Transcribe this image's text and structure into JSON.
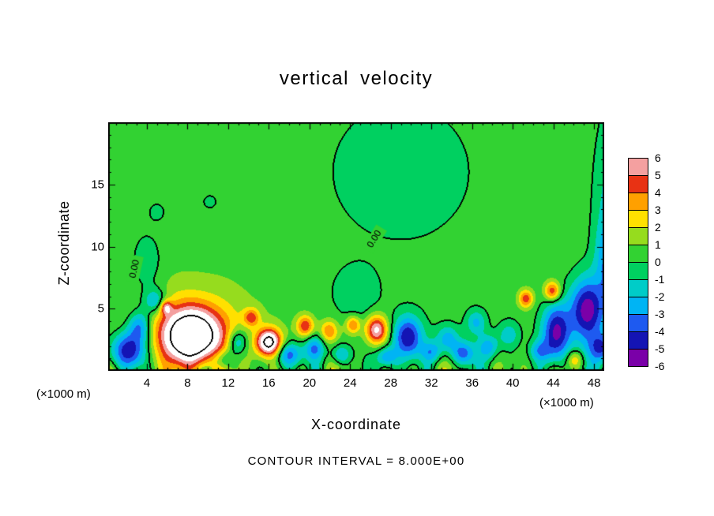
{
  "title": "vertical velocity",
  "footer": "CONTOUR INTERVAL = 8.000E+00",
  "axes": {
    "x_label": "X-coordinate",
    "y_label": "Z-coordinate",
    "unit_left": "(×1000 m)",
    "unit_right": "(×1000 m)"
  },
  "colorbar": {
    "tick_labels": [
      "6",
      "5",
      "4",
      "3",
      "2",
      "1",
      "0",
      "-1",
      "-2",
      "-3",
      "-4",
      "-5",
      "-6"
    ]
  },
  "chart_data": {
    "type": "heatmap",
    "title": "vertical velocity",
    "xlabel": "X-coordinate",
    "ylabel": "Z-coordinate",
    "x_unit": "×1000 m",
    "y_unit": "×1000 m",
    "xlim": [
      0.2,
      49.0
    ],
    "zlim": [
      0,
      20
    ],
    "x_major_ticks": [
      4,
      8,
      12,
      16,
      20,
      24,
      28,
      32,
      36,
      40,
      44,
      48
    ],
    "x_minor_step": 1,
    "y_major_ticks": [
      5,
      10,
      15
    ],
    "y_minor_step": 1,
    "levels": [
      -6,
      -5,
      -4,
      -3,
      -2,
      -1,
      0,
      1,
      2,
      3,
      4,
      5,
      6
    ],
    "band_colors": [
      "#7a00a8",
      "#1414b4",
      "#1e5af0",
      "#00b4f4",
      "#00ccc8",
      "#00d060",
      "#32d232",
      "#96dc1e",
      "#ffe000",
      "#ffa000",
      "#e83214",
      "#f4a0a0"
    ],
    "overflow_color": "#ffffff",
    "underflow_color": "#7a00a8",
    "contour_levels": [
      0,
      8
    ],
    "contour_interval": 8.0,
    "contour_labels": [
      {
        "text": "0.00",
        "x": 2.8,
        "z": 8.2,
        "angle": -78
      },
      {
        "text": "0.00",
        "x": 26.4,
        "z": 10.6,
        "angle": -58
      }
    ],
    "background": 0.6,
    "ripple": {
      "amp": 1.8,
      "kx": 1.15,
      "phase": 0.4,
      "mod_k": 0.53,
      "mod_phase": 2.0,
      "decay": 1.6,
      "amp2": 0.9,
      "kx2": 2.3,
      "phase2": 1.1,
      "decay2": 1.0
    },
    "features": [
      {
        "x": 8.4,
        "z": 2.8,
        "sx": 1.9,
        "sz": 1.5,
        "amp": 10.0
      },
      {
        "x": 8.4,
        "z": 3.2,
        "sx": 4.2,
        "sz": 2.6,
        "amp": 2.2
      },
      {
        "x": 16.0,
        "z": 2.3,
        "sx": 0.85,
        "sz": 0.75,
        "amp": 8.2
      },
      {
        "x": 2.2,
        "z": 1.6,
        "sx": 1.3,
        "sz": 1.1,
        "amp": -6.0
      },
      {
        "x": 3.3,
        "z": 3.6,
        "sx": 0.8,
        "sz": 0.9,
        "amp": -4.0
      },
      {
        "x": 4.8,
        "z": 5.6,
        "sx": 0.8,
        "sz": 0.7,
        "amp": -3.2
      },
      {
        "x": 5.9,
        "z": 5.1,
        "sx": 0.4,
        "sz": 0.4,
        "amp": 4.0
      },
      {
        "x": 11.6,
        "z": 0.9,
        "sx": 0.8,
        "sz": 0.6,
        "amp": -3.2
      },
      {
        "x": 12.9,
        "z": 2.3,
        "sx": 0.7,
        "sz": 0.7,
        "amp": -3.5
      },
      {
        "x": 14.3,
        "z": 4.3,
        "sx": 0.55,
        "sz": 0.5,
        "amp": 3.6
      },
      {
        "x": 18.0,
        "z": 1.3,
        "sx": 0.9,
        "sz": 0.7,
        "amp": -4.0
      },
      {
        "x": 19.6,
        "z": 3.6,
        "sx": 0.6,
        "sz": 0.6,
        "amp": 4.4
      },
      {
        "x": 20.5,
        "z": 1.8,
        "sx": 0.7,
        "sz": 0.7,
        "amp": -3.4
      },
      {
        "x": 21.9,
        "z": 3.2,
        "sx": 0.6,
        "sz": 0.6,
        "amp": 3.4
      },
      {
        "x": 23.1,
        "z": 1.3,
        "sx": 0.7,
        "sz": 0.6,
        "amp": -3.0
      },
      {
        "x": 24.3,
        "z": 3.7,
        "sx": 0.5,
        "sz": 0.5,
        "amp": 3.8
      },
      {
        "x": 26.6,
        "z": 3.3,
        "sx": 0.75,
        "sz": 0.8,
        "amp": 6.0
      },
      {
        "x": 27.6,
        "z": 1.1,
        "sx": 0.7,
        "sz": 0.6,
        "amp": -3.4
      },
      {
        "x": 29.7,
        "z": 2.7,
        "sx": 1.0,
        "sz": 1.2,
        "amp": -5.5
      },
      {
        "x": 32.0,
        "z": 1.5,
        "sx": 0.7,
        "sz": 0.6,
        "amp": -2.8
      },
      {
        "x": 33.6,
        "z": 2.6,
        "sx": 0.8,
        "sz": 0.8,
        "amp": -3.2
      },
      {
        "x": 35.1,
        "z": 1.4,
        "sx": 0.8,
        "sz": 0.7,
        "amp": -4.0
      },
      {
        "x": 36.4,
        "z": 3.9,
        "sx": 0.7,
        "sz": 0.7,
        "amp": -2.6
      },
      {
        "x": 37.6,
        "z": 1.9,
        "sx": 0.7,
        "sz": 0.7,
        "amp": -3.0
      },
      {
        "x": 39.6,
        "z": 2.9,
        "sx": 0.8,
        "sz": 0.8,
        "amp": -2.2
      },
      {
        "x": 41.3,
        "z": 5.8,
        "sx": 0.5,
        "sz": 0.5,
        "amp": 4.2
      },
      {
        "x": 42.6,
        "z": 1.6,
        "sx": 0.7,
        "sz": 0.6,
        "amp": -2.6
      },
      {
        "x": 43.9,
        "z": 6.4,
        "sx": 0.55,
        "sz": 0.55,
        "amp": 4.6
      },
      {
        "x": 44.3,
        "z": 3.0,
        "sx": 1.0,
        "sz": 1.7,
        "amp": -6.0
      },
      {
        "x": 46.1,
        "z": 0.9,
        "sx": 0.55,
        "sz": 0.5,
        "amp": 2.6
      },
      {
        "x": 47.3,
        "z": 4.9,
        "sx": 1.2,
        "sz": 1.8,
        "amp": -6.0
      },
      {
        "x": 48.8,
        "z": 1.8,
        "sx": 0.9,
        "sz": 0.8,
        "amp": -4.0
      },
      {
        "x": 50.0,
        "z": 12.0,
        "sx": 1.3,
        "sz": 6.0,
        "amp": -2.6
      },
      {
        "x": 49.8,
        "z": 9.0,
        "sx": 1.0,
        "sz": 2.0,
        "amp": -3.0
      },
      {
        "x": 29.0,
        "z": 16.0,
        "sx": 8.0,
        "sz": 6.5,
        "amp": -0.85
      },
      {
        "x": 24.5,
        "z": 6.0,
        "sx": 1.6,
        "sz": 1.5,
        "amp": -1.2
      },
      {
        "x": 4.0,
        "z": 8.5,
        "sx": 1.1,
        "sz": 1.9,
        "amp": -1.3
      },
      {
        "x": 5.0,
        "z": 12.8,
        "sx": 0.6,
        "sz": 0.55,
        "amp": -1.0
      },
      {
        "x": 10.2,
        "z": 13.6,
        "sx": 0.55,
        "sz": 0.45,
        "amp": -0.95
      }
    ]
  }
}
